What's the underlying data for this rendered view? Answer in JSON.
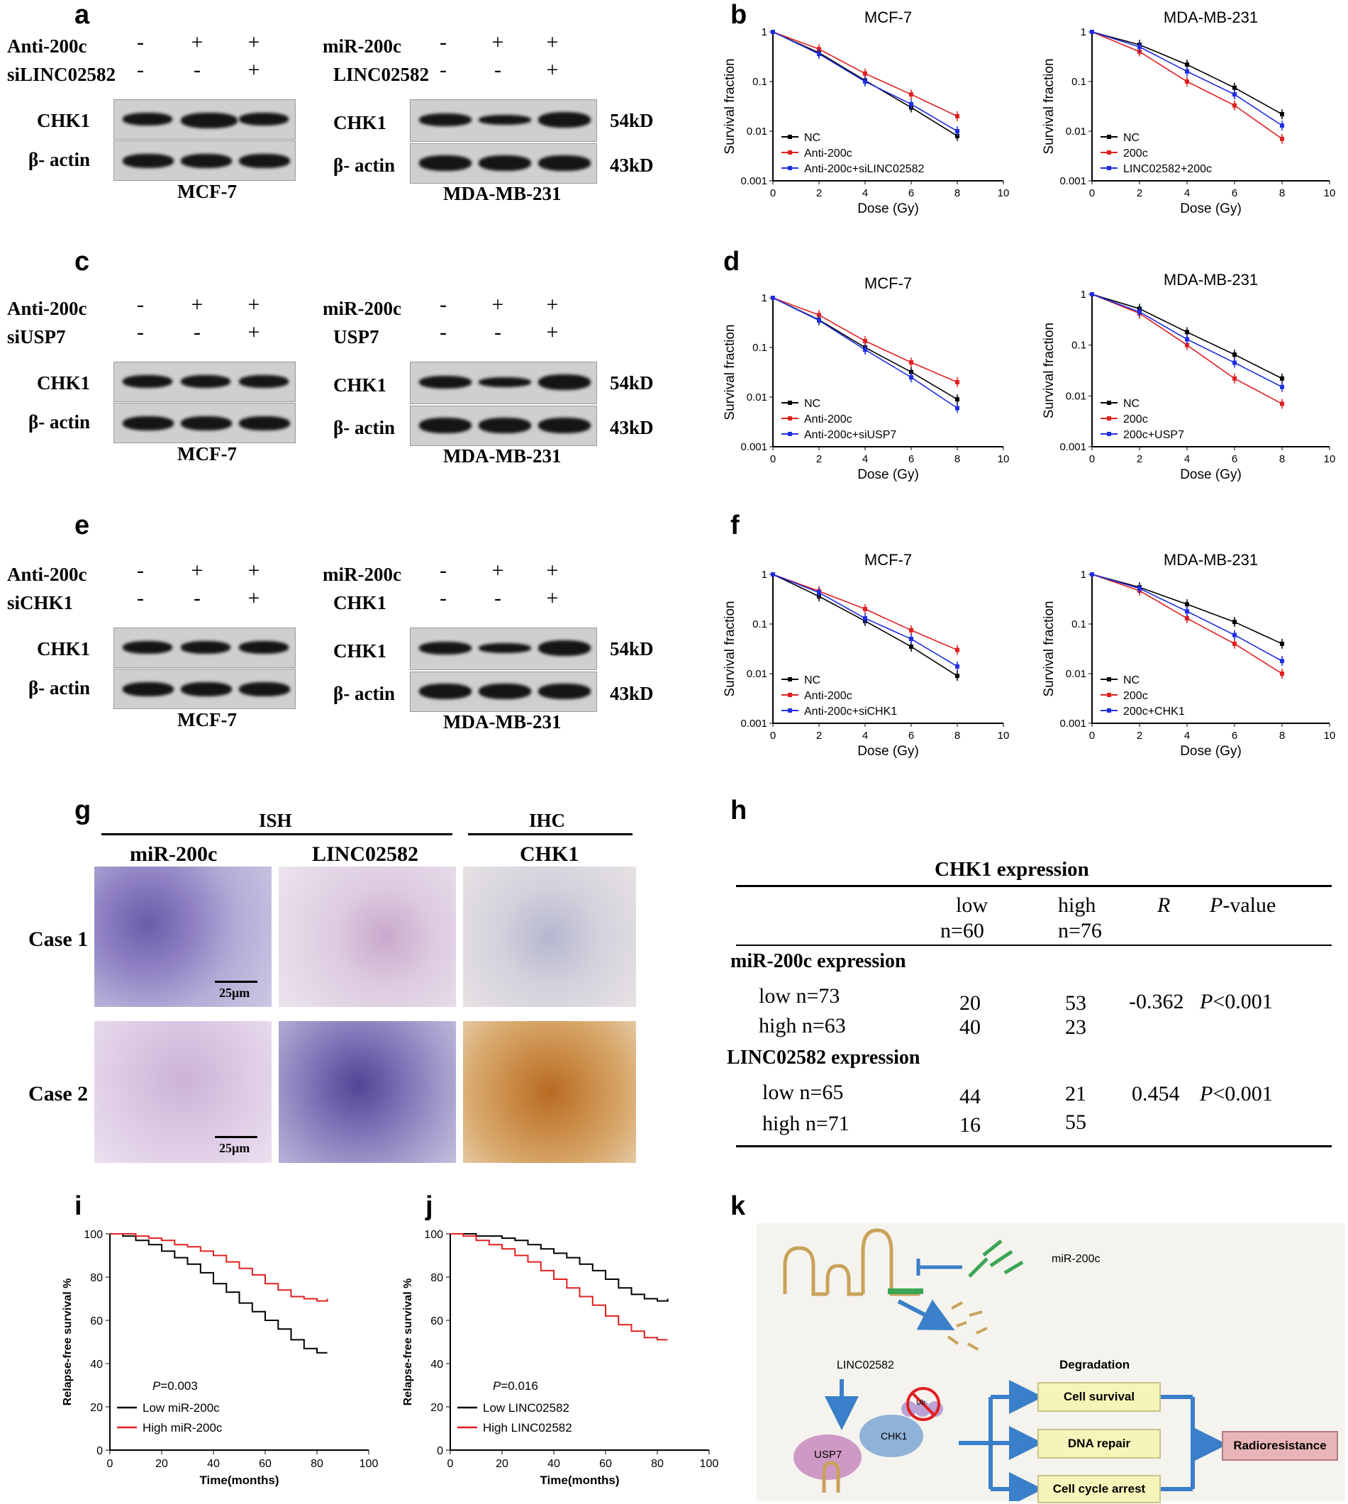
{
  "panels": {
    "a": "a",
    "b": "b",
    "c": "c",
    "d": "d",
    "e": "e",
    "f": "f",
    "g": "g",
    "h": "h",
    "i": "i",
    "j": "j",
    "k": "k"
  },
  "blots": {
    "a": {
      "left": {
        "cond1": "Anti-200c",
        "cond2": "siLINC02582",
        "signs1": [
          "-",
          "+",
          "+"
        ],
        "signs2": [
          "-",
          "-",
          "+"
        ],
        "row1": "CHK1",
        "row2": "β- actin",
        "cell": "MCF-7"
      },
      "right": {
        "cond1": "miR-200c",
        "cond2": "LINC02582",
        "signs1": [
          "-",
          "+",
          "+"
        ],
        "signs2": [
          "-",
          "-",
          "+"
        ],
        "row1": "CHK1",
        "row2": "β- actin",
        "cell": "MDA-MB-231",
        "kd1": "54kD",
        "kd2": "43kD"
      }
    },
    "c": {
      "left": {
        "cond1": "Anti-200c",
        "cond2": "siUSP7",
        "signs1": [
          "-",
          "+",
          "+"
        ],
        "signs2": [
          "-",
          "-",
          "+"
        ],
        "row1": "CHK1",
        "row2": "β- actin",
        "cell": "MCF-7"
      },
      "right": {
        "cond1": "miR-200c",
        "cond2": "USP7",
        "signs1": [
          "-",
          "+",
          "+"
        ],
        "signs2": [
          "-",
          "-",
          "+"
        ],
        "row1": "CHK1",
        "row2": "β- actin",
        "cell": "MDA-MB-231",
        "kd1": "54kD",
        "kd2": "43kD"
      }
    },
    "e": {
      "left": {
        "cond1": "Anti-200c",
        "cond2": "siCHK1",
        "signs1": [
          "-",
          "+",
          "+"
        ],
        "signs2": [
          "-",
          "-",
          "+"
        ],
        "row1": "CHK1",
        "row2": "β- actin",
        "cell": "MCF-7"
      },
      "right": {
        "cond1": "miR-200c",
        "cond2": "CHK1",
        "signs1": [
          "-",
          "+",
          "+"
        ],
        "signs2": [
          "-",
          "-",
          "+"
        ],
        "row1": "CHK1",
        "row2": "β- actin",
        "cell": "MDA-MB-231",
        "kd1": "54kD",
        "kd2": "43kD"
      }
    }
  },
  "histology": {
    "group1": "ISH",
    "group2": "IHC",
    "col1": "miR-200c",
    "col2": "LINC02582",
    "col3": "CHK1",
    "row1": "Case 1",
    "row2": "Case 2",
    "scale": "25μm"
  },
  "table_h": {
    "title": "CHK1 expression",
    "col_low": "low",
    "col_low_n": "n=60",
    "col_high": "high",
    "col_high_n": "n=76",
    "col_r": "R",
    "col_p": "P",
    "col_p_suffix": "-value",
    "group1": "miR-200c  expression",
    "group2": "LINC02582  expression",
    "rows": [
      {
        "label": "low   n=73",
        "low": "20",
        "high": "53",
        "r": "-0.362",
        "p": "P",
        "p_rest": "<0.001"
      },
      {
        "label": "high   n=63",
        "low": "40",
        "high": "23",
        "r": "",
        "p": "",
        "p_rest": ""
      },
      {
        "label": "low    n=65",
        "low": "44",
        "high": "21",
        "r": "0.454",
        "p": "P",
        "p_rest": "<0.001"
      },
      {
        "label": "high   n=71",
        "low": "16",
        "high": "55",
        "r": "",
        "p": "",
        "p_rest": ""
      }
    ]
  },
  "diagram_k": {
    "mir": "miR-200c",
    "lnc": "LINC02582",
    "degradation": "Degradation",
    "usp7": "USP7",
    "chk1": "CHK1",
    "ub": "Ub",
    "out1": "Cell survival",
    "out2": "DNA repair",
    "out3": "Cell cycle arrest",
    "result": "Radioresistance",
    "colors": {
      "box": "#f6f4b8",
      "result": "#e8b4b8",
      "arrow": "#3a7fc9",
      "bg": "#f5f3ee",
      "rna": "#c9a25a",
      "mir": "#3aa655"
    }
  },
  "chart_data": [
    {
      "id": "b-mcf7",
      "type": "line",
      "title": "MCF-7",
      "xlabel": "Dose (Gy)",
      "ylabel": "Survival fraction",
      "xlim": [
        0,
        10
      ],
      "ylim": [
        0.001,
        1
      ],
      "yscale": "log",
      "xticks": [
        "0",
        "2",
        "4",
        "6",
        "8",
        "10"
      ],
      "yticks": [
        "1",
        "0.1",
        "0.01",
        "0.001"
      ],
      "series": [
        {
          "name": "NC",
          "color": "#000000",
          "x": [
            0,
            2,
            4,
            6,
            8
          ],
          "y": [
            1,
            0.38,
            0.105,
            0.03,
            0.008
          ]
        },
        {
          "name": "Anti-200c",
          "color": "#e02020",
          "x": [
            0,
            2,
            4,
            6,
            8
          ],
          "y": [
            1,
            0.45,
            0.145,
            0.055,
            0.02
          ]
        },
        {
          "name": "Anti-200c+siLINC02582",
          "color": "#1f2ee0",
          "x": [
            0,
            2,
            4,
            6,
            8
          ],
          "y": [
            1,
            0.36,
            0.1,
            0.035,
            0.01
          ]
        }
      ]
    },
    {
      "id": "b-mda",
      "type": "line",
      "title": "MDA-MB-231",
      "xlabel": "Dose (Gy)",
      "ylabel": "Survival fraction",
      "xlim": [
        0,
        10
      ],
      "ylim": [
        0.001,
        1
      ],
      "yscale": "log",
      "xticks": [
        "0",
        "2",
        "4",
        "6",
        "8",
        "10"
      ],
      "yticks": [
        "1",
        "0.1",
        "0.01",
        "0.001"
      ],
      "series": [
        {
          "name": "NC",
          "color": "#000000",
          "x": [
            0,
            2,
            4,
            6,
            8
          ],
          "y": [
            1,
            0.55,
            0.22,
            0.075,
            0.022
          ]
        },
        {
          "name": "200c",
          "color": "#e02020",
          "x": [
            0,
            2,
            4,
            6,
            8
          ],
          "y": [
            1,
            0.4,
            0.1,
            0.033,
            0.007
          ]
        },
        {
          "name": "LINC02582+200c",
          "color": "#1f2ee0",
          "x": [
            0,
            2,
            4,
            6,
            8
          ],
          "y": [
            1,
            0.5,
            0.16,
            0.055,
            0.013
          ]
        }
      ]
    },
    {
      "id": "d-mcf7",
      "type": "line",
      "title": "MCF-7",
      "xlabel": "Dose (Gy)",
      "ylabel": "Survival fraction",
      "xlim": [
        0,
        10
      ],
      "ylim": [
        0.001,
        1
      ],
      "yscale": "log",
      "xticks": [
        "0",
        "2",
        "4",
        "6",
        "8",
        "10"
      ],
      "yticks": [
        "1",
        "0.1",
        "0.01",
        "0.001"
      ],
      "series": [
        {
          "name": "NC",
          "color": "#000000",
          "x": [
            0,
            2,
            4,
            6,
            8
          ],
          "y": [
            1,
            0.36,
            0.1,
            0.032,
            0.009
          ]
        },
        {
          "name": "Anti-200c",
          "color": "#e02020",
          "x": [
            0,
            2,
            4,
            6,
            8
          ],
          "y": [
            1,
            0.45,
            0.135,
            0.05,
            0.02
          ]
        },
        {
          "name": "Anti-200c+siUSP7",
          "color": "#1f2ee0",
          "x": [
            0,
            2,
            4,
            6,
            8
          ],
          "y": [
            1,
            0.35,
            0.09,
            0.025,
            0.006
          ]
        }
      ]
    },
    {
      "id": "d-mda",
      "type": "line",
      "title": "MDA-MB-231",
      "xlabel": "Dose (Gy)",
      "ylabel": "Survival fraction",
      "xlim": [
        0,
        10
      ],
      "ylim": [
        0.001,
        1
      ],
      "yscale": "log",
      "xticks": [
        "0",
        "2",
        "4",
        "6",
        "8",
        "10"
      ],
      "yticks": [
        "1",
        "0.1",
        "0.01",
        "0.001"
      ],
      "series": [
        {
          "name": "NC",
          "color": "#000000",
          "x": [
            0,
            2,
            4,
            6,
            8
          ],
          "y": [
            1,
            0.52,
            0.18,
            0.065,
            0.022
          ]
        },
        {
          "name": "200c",
          "color": "#e02020",
          "x": [
            0,
            2,
            4,
            6,
            8
          ],
          "y": [
            1,
            0.42,
            0.1,
            0.022,
            0.007
          ]
        },
        {
          "name": "200c+USP7",
          "color": "#1f2ee0",
          "x": [
            0,
            2,
            4,
            6,
            8
          ],
          "y": [
            1,
            0.45,
            0.13,
            0.045,
            0.015
          ]
        }
      ]
    },
    {
      "id": "f-mcf7",
      "type": "line",
      "title": "MCF-7",
      "xlabel": "Dose (Gy)",
      "ylabel": "Survival fraction",
      "xlim": [
        0,
        10
      ],
      "ylim": [
        0.001,
        1
      ],
      "yscale": "log",
      "xticks": [
        "0",
        "2",
        "4",
        "6",
        "8",
        "10"
      ],
      "yticks": [
        "1",
        "0.1",
        "0.01",
        "0.001"
      ],
      "series": [
        {
          "name": "NC",
          "color": "#000000",
          "x": [
            0,
            2,
            4,
            6,
            8
          ],
          "y": [
            1,
            0.36,
            0.115,
            0.035,
            0.009
          ]
        },
        {
          "name": "Anti-200c",
          "color": "#e02020",
          "x": [
            0,
            2,
            4,
            6,
            8
          ],
          "y": [
            1,
            0.46,
            0.2,
            0.075,
            0.03
          ]
        },
        {
          "name": "Anti-200c+siCHK1",
          "color": "#1f2ee0",
          "x": [
            0,
            2,
            4,
            6,
            8
          ],
          "y": [
            1,
            0.43,
            0.13,
            0.05,
            0.014
          ]
        }
      ]
    },
    {
      "id": "f-mda",
      "type": "line",
      "title": "MDA-MB-231",
      "xlabel": "Dose (Gy)",
      "ylabel": "Survival fraction",
      "xlim": [
        0,
        10
      ],
      "ylim": [
        0.001,
        1
      ],
      "yscale": "log",
      "xticks": [
        "0",
        "2",
        "4",
        "6",
        "8",
        "10"
      ],
      "yticks": [
        "1",
        "0.1",
        "0.01",
        "0.001"
      ],
      "series": [
        {
          "name": "NC",
          "color": "#000000",
          "x": [
            0,
            2,
            4,
            6,
            8
          ],
          "y": [
            1,
            0.55,
            0.25,
            0.11,
            0.04
          ]
        },
        {
          "name": "200c",
          "color": "#e02020",
          "x": [
            0,
            2,
            4,
            6,
            8
          ],
          "y": [
            1,
            0.47,
            0.13,
            0.04,
            0.01
          ]
        },
        {
          "name": "200c+CHK1",
          "color": "#1f2ee0",
          "x": [
            0,
            2,
            4,
            6,
            8
          ],
          "y": [
            1,
            0.52,
            0.18,
            0.06,
            0.018
          ]
        }
      ]
    },
    {
      "id": "i",
      "type": "line",
      "step": true,
      "xlabel": "Time(months)",
      "ylabel": "Relapse-free survival %",
      "xlim": [
        0,
        100
      ],
      "ylim": [
        0,
        100
      ],
      "xticks": [
        "0",
        "20",
        "40",
        "60",
        "80",
        "100"
      ],
      "yticks": [
        "0",
        "20",
        "40",
        "60",
        "80",
        "100"
      ],
      "pvalue_label": "P",
      "pvalue": "=0.003",
      "series": [
        {
          "name": "Low miR-200c",
          "color": "#000000",
          "x": [
            0,
            5,
            10,
            15,
            20,
            25,
            30,
            35,
            40,
            45,
            50,
            55,
            60,
            65,
            70,
            75,
            80,
            84
          ],
          "y": [
            100,
            99,
            97,
            95,
            92,
            89,
            86,
            82,
            77,
            73,
            68,
            64,
            60,
            56,
            51,
            47,
            45,
            45
          ]
        },
        {
          "name": "High miR-200c",
          "color": "#e02020",
          "x": [
            0,
            5,
            10,
            15,
            20,
            25,
            30,
            35,
            40,
            45,
            50,
            55,
            60,
            65,
            70,
            75,
            80,
            84
          ],
          "y": [
            100,
            100,
            99,
            98,
            97,
            95,
            94,
            92,
            90,
            87,
            84,
            81,
            77,
            74,
            71,
            70,
            69,
            70
          ]
        }
      ]
    },
    {
      "id": "j",
      "type": "line",
      "step": true,
      "xlabel": "Time(months)",
      "ylabel": "Relapse-free survival %",
      "xlim": [
        0,
        100
      ],
      "ylim": [
        0,
        100
      ],
      "xticks": [
        "0",
        "20",
        "40",
        "60",
        "80",
        "100"
      ],
      "yticks": [
        "0",
        "20",
        "40",
        "60",
        "80",
        "100"
      ],
      "pvalue_label": "P",
      "pvalue": "=0.016",
      "series": [
        {
          "name": "Low LINC02582",
          "color": "#000000",
          "x": [
            0,
            5,
            10,
            15,
            20,
            25,
            30,
            35,
            40,
            45,
            50,
            55,
            60,
            65,
            70,
            75,
            80,
            84
          ],
          "y": [
            100,
            100,
            99,
            99,
            98,
            97,
            95,
            93,
            91,
            89,
            86,
            83,
            79,
            75,
            72,
            70,
            69,
            70
          ]
        },
        {
          "name": "High LINC02582",
          "color": "#e02020",
          "x": [
            0,
            5,
            10,
            15,
            20,
            25,
            30,
            35,
            40,
            45,
            50,
            55,
            60,
            65,
            70,
            75,
            80,
            84
          ],
          "y": [
            100,
            99,
            97,
            95,
            93,
            90,
            87,
            83,
            79,
            75,
            71,
            67,
            62,
            58,
            55,
            52,
            51,
            51
          ]
        }
      ]
    }
  ]
}
